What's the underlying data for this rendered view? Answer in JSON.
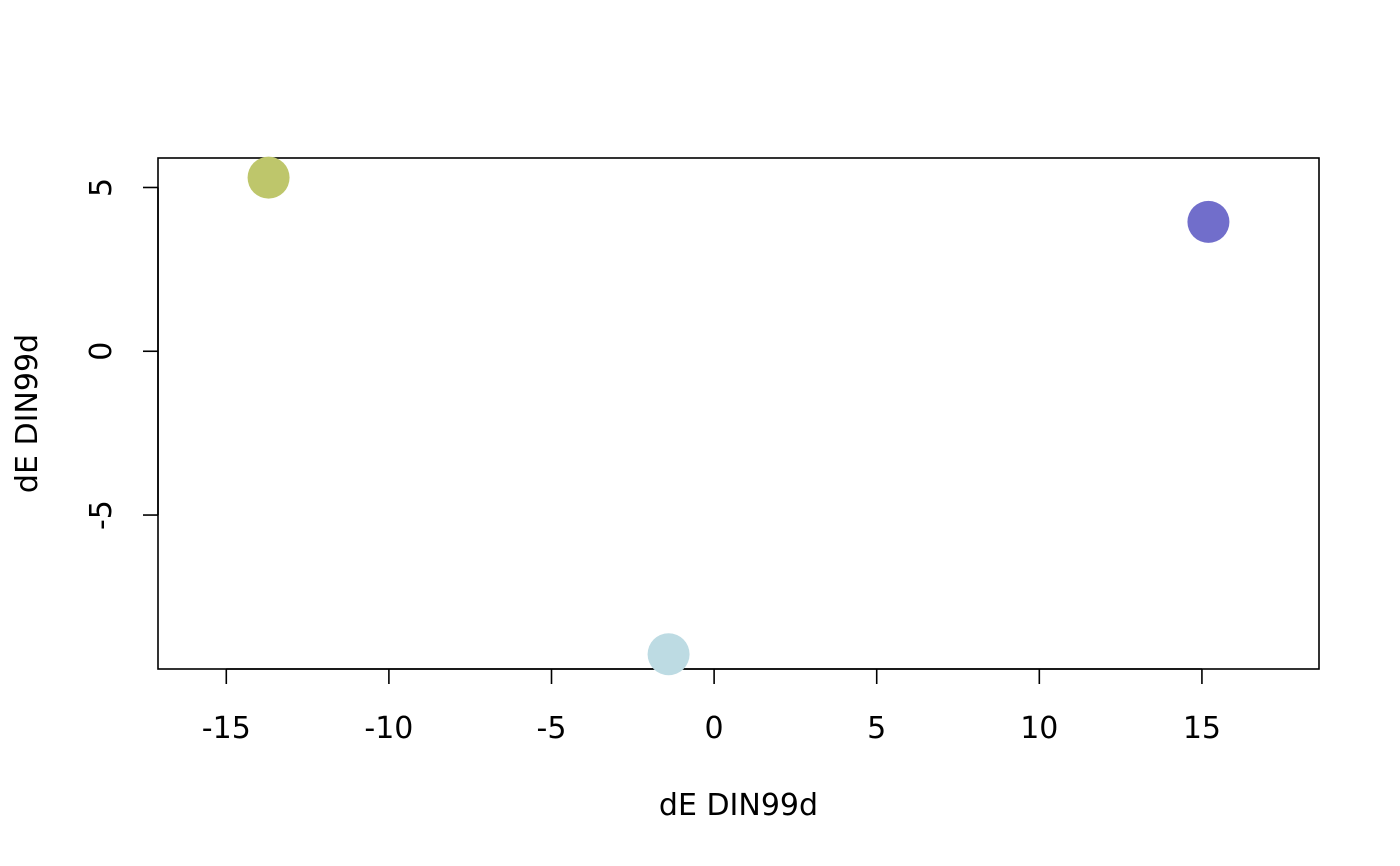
{
  "chart_data": {
    "type": "scatter",
    "title": "",
    "xlabel": "dE DIN99d",
    "ylabel": "dE DIN99d",
    "xlim": [
      -17.1,
      18.6
    ],
    "ylim": [
      -9.7,
      5.9
    ],
    "x_ticks": [
      -15,
      -10,
      -5,
      0,
      5,
      10,
      15
    ],
    "x_tick_labels": [
      "-15",
      "-10",
      "-5",
      "0",
      "5",
      "10",
      "15"
    ],
    "y_ticks": [
      -5,
      0,
      5
    ],
    "y_tick_labels": [
      "-5",
      "0",
      "5"
    ],
    "grid": false,
    "legend": "none",
    "points": [
      {
        "x": -13.7,
        "y": 5.3,
        "color": "#bec66b"
      },
      {
        "x": 15.2,
        "y": 3.95,
        "color": "#716ecb"
      },
      {
        "x": -1.4,
        "y": -9.25,
        "color": "#bddbe3"
      }
    ]
  }
}
